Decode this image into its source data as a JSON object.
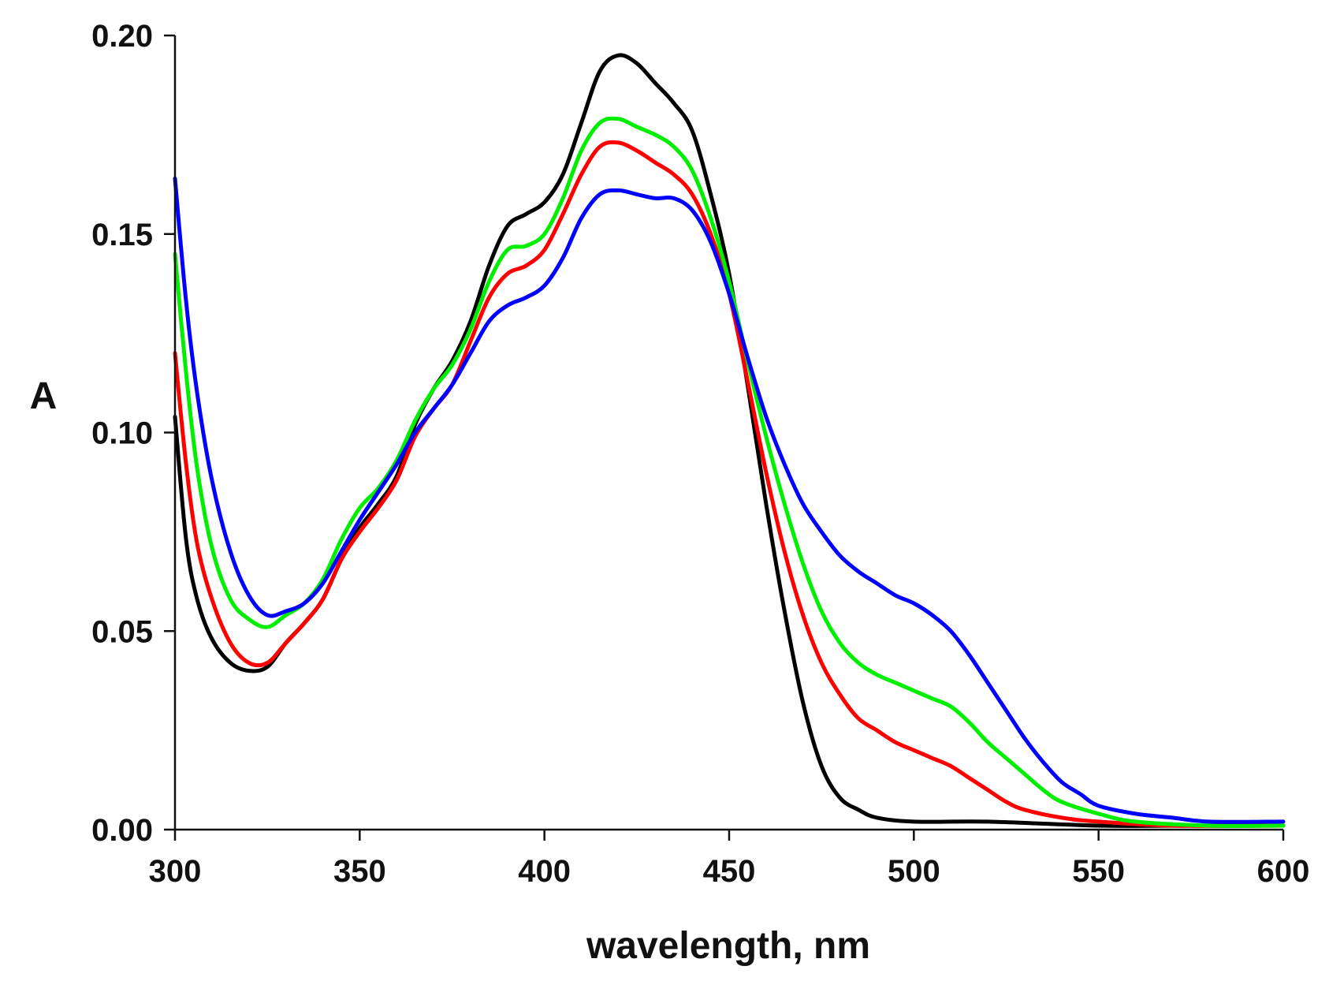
{
  "chart_data": {
    "type": "line",
    "title": "",
    "xlabel": "wavelength, nm",
    "ylabel": "A",
    "xlim": [
      300,
      600
    ],
    "ylim": [
      0,
      0.2
    ],
    "xticks": [
      300,
      350,
      400,
      450,
      500,
      550,
      600
    ],
    "yticks": [
      0.0,
      0.05,
      0.1,
      0.15,
      0.2
    ],
    "xtick_labels": [
      "300",
      "350",
      "400",
      "450",
      "500",
      "550",
      "600"
    ],
    "ytick_labels": [
      "0.00",
      "0.05",
      "0.10",
      "0.15",
      "0.20"
    ],
    "grid": false,
    "legend": "none",
    "series": [
      {
        "name": "black",
        "color": "#000000",
        "points": [
          [
            300,
            0.104
          ],
          [
            303,
            0.073
          ],
          [
            306,
            0.058
          ],
          [
            310,
            0.048
          ],
          [
            315,
            0.042
          ],
          [
            320,
            0.04
          ],
          [
            325,
            0.041
          ],
          [
            330,
            0.047
          ],
          [
            335,
            0.052
          ],
          [
            340,
            0.058
          ],
          [
            345,
            0.068
          ],
          [
            350,
            0.076
          ],
          [
            355,
            0.082
          ],
          [
            360,
            0.089
          ],
          [
            365,
            0.102
          ],
          [
            370,
            0.111
          ],
          [
            375,
            0.118
          ],
          [
            380,
            0.128
          ],
          [
            385,
            0.142
          ],
          [
            390,
            0.152
          ],
          [
            395,
            0.155
          ],
          [
            400,
            0.158
          ],
          [
            405,
            0.165
          ],
          [
            410,
            0.178
          ],
          [
            415,
            0.191
          ],
          [
            420,
            0.195
          ],
          [
            425,
            0.193
          ],
          [
            430,
            0.188
          ],
          [
            435,
            0.183
          ],
          [
            440,
            0.176
          ],
          [
            445,
            0.16
          ],
          [
            450,
            0.14
          ],
          [
            455,
            0.112
          ],
          [
            460,
            0.082
          ],
          [
            465,
            0.055
          ],
          [
            470,
            0.032
          ],
          [
            475,
            0.016
          ],
          [
            480,
            0.008
          ],
          [
            485,
            0.005
          ],
          [
            490,
            0.003
          ],
          [
            500,
            0.002
          ],
          [
            520,
            0.002
          ],
          [
            550,
            0.001
          ],
          [
            575,
            0.001
          ],
          [
            600,
            0.001
          ]
        ]
      },
      {
        "name": "red",
        "color": "#ff0000",
        "points": [
          [
            300,
            0.12
          ],
          [
            303,
            0.092
          ],
          [
            306,
            0.072
          ],
          [
            310,
            0.058
          ],
          [
            315,
            0.047
          ],
          [
            320,
            0.042
          ],
          [
            325,
            0.042
          ],
          [
            330,
            0.047
          ],
          [
            335,
            0.052
          ],
          [
            340,
            0.058
          ],
          [
            345,
            0.068
          ],
          [
            350,
            0.075
          ],
          [
            355,
            0.081
          ],
          [
            360,
            0.088
          ],
          [
            365,
            0.099
          ],
          [
            370,
            0.106
          ],
          [
            375,
            0.112
          ],
          [
            380,
            0.123
          ],
          [
            385,
            0.134
          ],
          [
            390,
            0.14
          ],
          [
            395,
            0.142
          ],
          [
            400,
            0.146
          ],
          [
            405,
            0.155
          ],
          [
            410,
            0.165
          ],
          [
            415,
            0.172
          ],
          [
            420,
            0.173
          ],
          [
            425,
            0.171
          ],
          [
            430,
            0.168
          ],
          [
            435,
            0.165
          ],
          [
            440,
            0.16
          ],
          [
            445,
            0.15
          ],
          [
            450,
            0.135
          ],
          [
            455,
            0.113
          ],
          [
            460,
            0.09
          ],
          [
            465,
            0.07
          ],
          [
            470,
            0.054
          ],
          [
            475,
            0.042
          ],
          [
            480,
            0.034
          ],
          [
            485,
            0.028
          ],
          [
            490,
            0.025
          ],
          [
            495,
            0.022
          ],
          [
            500,
            0.02
          ],
          [
            505,
            0.018
          ],
          [
            510,
            0.016
          ],
          [
            515,
            0.013
          ],
          [
            520,
            0.01
          ],
          [
            525,
            0.007
          ],
          [
            530,
            0.005
          ],
          [
            540,
            0.003
          ],
          [
            550,
            0.002
          ],
          [
            570,
            0.001
          ],
          [
            600,
            0.001
          ]
        ]
      },
      {
        "name": "green",
        "color": "#00ee00",
        "points": [
          [
            300,
            0.145
          ],
          [
            303,
            0.115
          ],
          [
            306,
            0.091
          ],
          [
            310,
            0.071
          ],
          [
            315,
            0.058
          ],
          [
            320,
            0.053
          ],
          [
            325,
            0.051
          ],
          [
            330,
            0.054
          ],
          [
            335,
            0.057
          ],
          [
            340,
            0.063
          ],
          [
            345,
            0.073
          ],
          [
            350,
            0.081
          ],
          [
            355,
            0.086
          ],
          [
            360,
            0.093
          ],
          [
            365,
            0.103
          ],
          [
            370,
            0.111
          ],
          [
            375,
            0.117
          ],
          [
            380,
            0.126
          ],
          [
            385,
            0.138
          ],
          [
            390,
            0.146
          ],
          [
            395,
            0.147
          ],
          [
            400,
            0.15
          ],
          [
            405,
            0.159
          ],
          [
            410,
            0.171
          ],
          [
            415,
            0.178
          ],
          [
            420,
            0.179
          ],
          [
            425,
            0.177
          ],
          [
            430,
            0.175
          ],
          [
            435,
            0.172
          ],
          [
            440,
            0.166
          ],
          [
            445,
            0.154
          ],
          [
            450,
            0.138
          ],
          [
            455,
            0.118
          ],
          [
            460,
            0.099
          ],
          [
            465,
            0.082
          ],
          [
            470,
            0.067
          ],
          [
            475,
            0.055
          ],
          [
            480,
            0.047
          ],
          [
            485,
            0.042
          ],
          [
            490,
            0.039
          ],
          [
            495,
            0.037
          ],
          [
            500,
            0.035
          ],
          [
            505,
            0.033
          ],
          [
            510,
            0.031
          ],
          [
            515,
            0.027
          ],
          [
            520,
            0.022
          ],
          [
            525,
            0.018
          ],
          [
            530,
            0.014
          ],
          [
            535,
            0.01
          ],
          [
            540,
            0.007
          ],
          [
            550,
            0.004
          ],
          [
            560,
            0.002
          ],
          [
            580,
            0.001
          ],
          [
            600,
            0.001
          ]
        ]
      },
      {
        "name": "blue",
        "color": "#0000ff",
        "points": [
          [
            300,
            0.164
          ],
          [
            303,
            0.133
          ],
          [
            306,
            0.11
          ],
          [
            310,
            0.088
          ],
          [
            315,
            0.07
          ],
          [
            320,
            0.059
          ],
          [
            325,
            0.054
          ],
          [
            330,
            0.055
          ],
          [
            335,
            0.057
          ],
          [
            340,
            0.062
          ],
          [
            345,
            0.07
          ],
          [
            350,
            0.078
          ],
          [
            355,
            0.085
          ],
          [
            360,
            0.092
          ],
          [
            365,
            0.1
          ],
          [
            370,
            0.106
          ],
          [
            375,
            0.112
          ],
          [
            380,
            0.12
          ],
          [
            385,
            0.128
          ],
          [
            390,
            0.132
          ],
          [
            395,
            0.134
          ],
          [
            400,
            0.137
          ],
          [
            405,
            0.144
          ],
          [
            410,
            0.154
          ],
          [
            415,
            0.16
          ],
          [
            420,
            0.161
          ],
          [
            425,
            0.16
          ],
          [
            430,
            0.159
          ],
          [
            435,
            0.159
          ],
          [
            440,
            0.156
          ],
          [
            445,
            0.148
          ],
          [
            450,
            0.135
          ],
          [
            455,
            0.119
          ],
          [
            460,
            0.104
          ],
          [
            465,
            0.092
          ],
          [
            470,
            0.082
          ],
          [
            475,
            0.075
          ],
          [
            480,
            0.069
          ],
          [
            485,
            0.065
          ],
          [
            490,
            0.062
          ],
          [
            495,
            0.059
          ],
          [
            500,
            0.057
          ],
          [
            505,
            0.054
          ],
          [
            510,
            0.05
          ],
          [
            515,
            0.044
          ],
          [
            520,
            0.037
          ],
          [
            525,
            0.03
          ],
          [
            530,
            0.023
          ],
          [
            535,
            0.017
          ],
          [
            540,
            0.012
          ],
          [
            545,
            0.009
          ],
          [
            550,
            0.006
          ],
          [
            560,
            0.004
          ],
          [
            570,
            0.003
          ],
          [
            580,
            0.002
          ],
          [
            600,
            0.002
          ]
        ]
      }
    ]
  }
}
